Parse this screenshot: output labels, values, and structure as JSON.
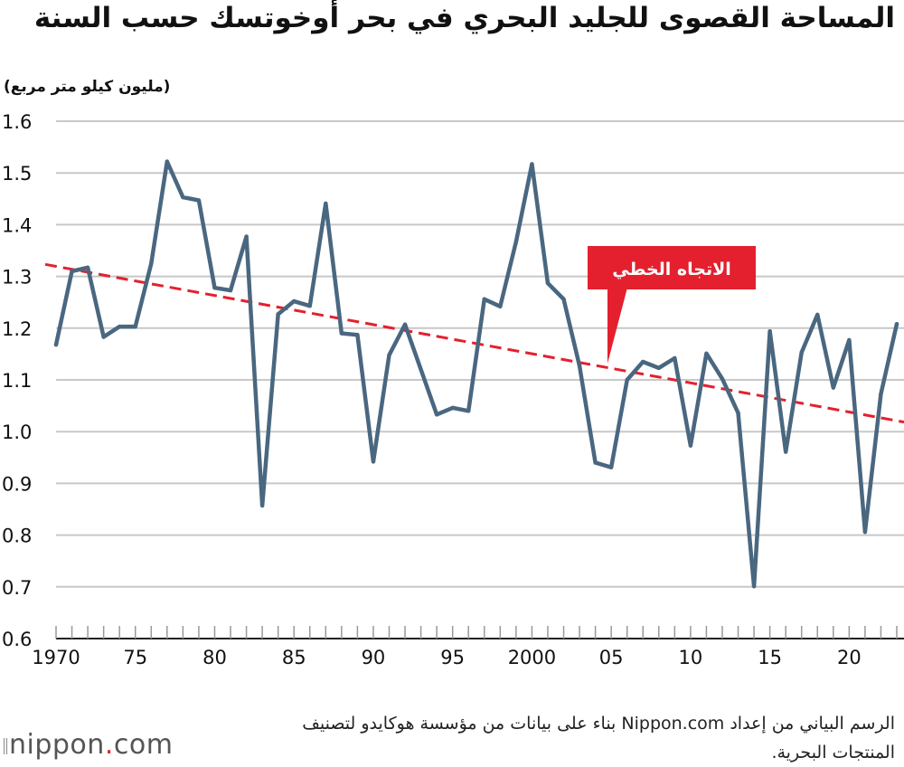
{
  "header": {
    "title": "المساحة القصوى للجليد البحري في بحر أوخوتسك حسب السنة",
    "unit_label": "(مليون كيلو متر مربع)"
  },
  "chart_data": {
    "type": "line",
    "title": "المساحة القصوى للجليد البحري في بحر أوخوتسك حسب السنة",
    "ylabel": "مليون كيلو متر مربع",
    "xlabel": "",
    "xlim": [
      1970,
      2023
    ],
    "ylim": [
      0.6,
      1.6
    ],
    "grid": true,
    "yticks": [
      {
        "value": 0.6,
        "label": "0.6"
      },
      {
        "value": 0.7,
        "label": "0.7"
      },
      {
        "value": 0.8,
        "label": "0.8"
      },
      {
        "value": 0.9,
        "label": "0.9"
      },
      {
        "value": 1.0,
        "label": "1.0"
      },
      {
        "value": 1.1,
        "label": "1.1"
      },
      {
        "value": 1.2,
        "label": "1.2"
      },
      {
        "value": 1.3,
        "label": "1.3"
      },
      {
        "value": 1.4,
        "label": "1.4"
      },
      {
        "value": 1.5,
        "label": "1.5"
      },
      {
        "value": 1.6,
        "label": "1.6"
      }
    ],
    "xticks": [
      {
        "value": 1970,
        "label": "1970"
      },
      {
        "value": 1975,
        "label": "75"
      },
      {
        "value": 1980,
        "label": "80"
      },
      {
        "value": 1985,
        "label": "85"
      },
      {
        "value": 1990,
        "label": "90"
      },
      {
        "value": 1995,
        "label": "95"
      },
      {
        "value": 2000,
        "label": "2000"
      },
      {
        "value": 2005,
        "label": "05"
      },
      {
        "value": 2010,
        "label": "10"
      },
      {
        "value": 2015,
        "label": "15"
      },
      {
        "value": 2020,
        "label": "20"
      }
    ],
    "series": [
      {
        "name": "المساحة القصوى",
        "color": "#4a6780",
        "x": [
          1970,
          1971,
          1972,
          1973,
          1974,
          1975,
          1976,
          1977,
          1978,
          1979,
          1980,
          1981,
          1982,
          1983,
          1984,
          1985,
          1986,
          1987,
          1988,
          1989,
          1990,
          1991,
          1992,
          1993,
          1994,
          1995,
          1996,
          1997,
          1998,
          1999,
          2000,
          2001,
          2002,
          2003,
          2004,
          2005,
          2006,
          2007,
          2008,
          2009,
          2010,
          2011,
          2012,
          2013,
          2014,
          2015,
          2016,
          2017,
          2018,
          2019,
          2020,
          2021,
          2022,
          2023
        ],
        "values": [
          1.168,
          1.31,
          1.317,
          1.183,
          1.203,
          1.203,
          1.325,
          1.522,
          1.453,
          1.447,
          1.278,
          1.273,
          1.377,
          0.857,
          1.227,
          1.252,
          1.243,
          1.441,
          1.19,
          1.187,
          0.942,
          1.148,
          1.207,
          1.12,
          1.033,
          1.046,
          1.04,
          1.256,
          1.242,
          1.367,
          1.517,
          1.287,
          1.256,
          1.127,
          0.94,
          0.931,
          1.1,
          1.135,
          1.123,
          1.142,
          0.973,
          1.151,
          1.102,
          1.036,
          0.701,
          1.194,
          0.961,
          1.153,
          1.226,
          1.085,
          1.177,
          0.806,
          1.073,
          1.208
        ]
      }
    ],
    "trend": {
      "name": "الاتجاه الخطي",
      "color": "#e4202e",
      "x": [
        1970,
        2023
      ],
      "values": [
        1.318,
        1.021
      ]
    },
    "annotation": {
      "text": "الاتجاه الخطي",
      "background": "#e4202e",
      "text_color": "#ffffff"
    },
    "colors": {
      "grid": "#c8c8c8",
      "axis": "#222222",
      "tick_text": "#111111"
    }
  },
  "footer": {
    "credit": "الرسم البياني من إعداد Nippon.com بناء على بيانات من مؤسسة هوكايدو لتصنيف المنتجات البحرية.",
    "logo_main": "nippon",
    "logo_dot": ".",
    "logo_suffix": "com"
  }
}
